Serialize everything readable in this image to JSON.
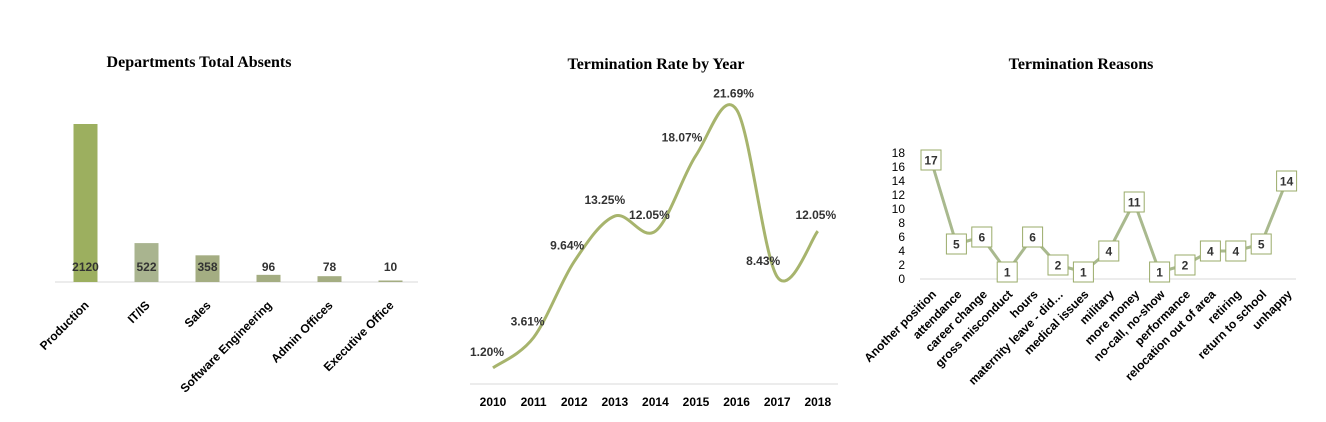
{
  "chart_data": [
    {
      "type": "bar",
      "title": "Departments Total Absents",
      "categories": [
        "Production",
        "IT/IS",
        "Sales",
        "Software Engineering",
        "Admin Offices",
        "Executive Office"
      ],
      "values": [
        2120,
        522,
        358,
        96,
        78,
        10
      ],
      "colors": [
        "#9caf5f",
        "#a9b48f",
        "#a4ad82",
        "#a4ad82",
        "#a4ad82",
        "#a4ad82"
      ],
      "grid": false,
      "legend": "none"
    },
    {
      "type": "line",
      "title": "Termination Rate by Year",
      "x": [
        "2010",
        "2011",
        "2012",
        "2013",
        "2014",
        "2015",
        "2016",
        "2017",
        "2018"
      ],
      "values": [
        1.2,
        3.61,
        9.64,
        13.25,
        12.05,
        18.07,
        21.69,
        8.43,
        12.05
      ],
      "data_labels": [
        "1.20%",
        "3.61%",
        "9.64%",
        "13.25%",
        "12.05%",
        "18.07%",
        "21.69%",
        "8.43%",
        "12.05%"
      ],
      "smooth": true,
      "color": "#a7b46d",
      "grid": false,
      "legend": "none"
    },
    {
      "type": "line",
      "title": "Termination Reasons",
      "categories": [
        "Another position",
        "attendance",
        "career change",
        "gross misconduct",
        "hours",
        "maternity leave - did…",
        "medical issues",
        "military",
        "more money",
        "no-call, no-show",
        "performance",
        "relocation out of area",
        "retiring",
        "return to school",
        "unhappy"
      ],
      "values": [
        17,
        5,
        6,
        1,
        6,
        2,
        1,
        4,
        11,
        1,
        2,
        4,
        4,
        5,
        14
      ],
      "yticks": [
        "0",
        "2",
        "4",
        "6",
        "8",
        "10",
        "12",
        "14",
        "16",
        "18"
      ],
      "ylim": [
        0,
        18
      ],
      "color": "#a9b98e",
      "marker": "square",
      "grid": false,
      "legend": "none"
    }
  ]
}
